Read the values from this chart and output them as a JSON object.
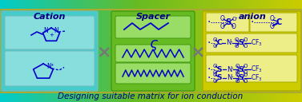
{
  "title": "Designing suitable matrix for ion conduction",
  "title_fontsize": 7.5,
  "section_labels": [
    "Cation",
    "Spacer",
    "anion"
  ],
  "label_fontsize": 8,
  "structure_color": "#0000cc",
  "x_symbol_color": "#777777",
  "text_color": "#000080",
  "figsize": [
    3.77,
    1.28
  ],
  "dpi": 100,
  "cation_bg": "#44cccc",
  "cation_inner": "#88dddd",
  "spacer_bg": "#66bb22",
  "spacer_inner": "#99dd66",
  "anion_bg": "#cccc00",
  "anion_inner": "#eeee88",
  "outer_edge": "#aaaa33",
  "cation_edge": "#77bbbb",
  "spacer_edge": "#449911",
  "anion_edge": "#aaaa00"
}
